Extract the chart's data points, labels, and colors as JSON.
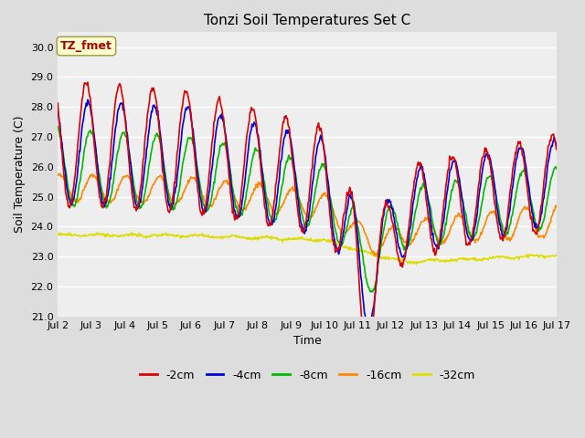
{
  "title": "Tonzi Soil Temperatures Set C",
  "xlabel": "Time",
  "ylabel": "Soil Temperature (C)",
  "ylim": [
    21.0,
    30.5
  ],
  "yticks": [
    21.0,
    22.0,
    23.0,
    24.0,
    25.0,
    26.0,
    27.0,
    28.0,
    29.0,
    30.0
  ],
  "xtick_labels": [
    "Jul 2",
    "Jul 3",
    "Jul 4",
    "Jul 5",
    "Jul 6",
    "Jul 7",
    "Jul 8",
    "Jul 9",
    "Jul 10",
    "Jul 11",
    "Jul 12",
    "Jul 13",
    "Jul 14",
    "Jul 15",
    "Jul 16",
    "Jul 17"
  ],
  "colors": {
    "-2cm": "#dd0000",
    "-4cm": "#0000dd",
    "-8cm": "#00bb00",
    "-16cm": "#ff8800",
    "-32cm": "#dddd00"
  },
  "legend_labels": [
    "-2cm",
    "-4cm",
    "-8cm",
    "-16cm",
    "-32cm"
  ],
  "annotation_text": "TZ_fmet",
  "annotation_color": "#aa0000",
  "annotation_bg": "#ffffcc",
  "annotation_edge": "#999944",
  "fig_bg": "#dddddd",
  "plot_bg": "#eeeeee",
  "grid_color": "#ffffff",
  "title_fontsize": 11,
  "axis_fontsize": 9,
  "tick_fontsize": 8,
  "legend_fontsize": 9,
  "linewidth": 1.2
}
